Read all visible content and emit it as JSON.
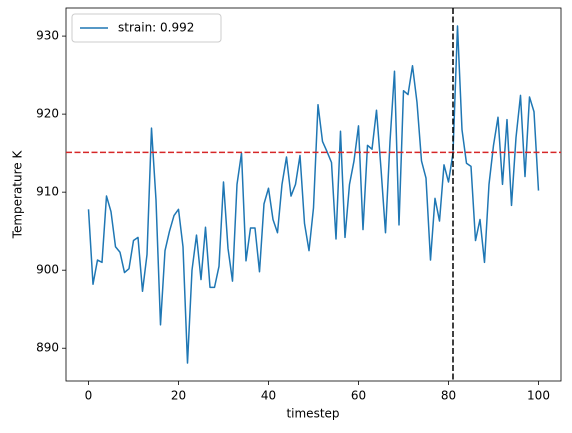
{
  "chart_data": {
    "type": "line",
    "xlabel": "timestep",
    "ylabel": "Temperature K",
    "x": [
      0,
      1,
      2,
      3,
      4,
      5,
      6,
      7,
      8,
      9,
      10,
      11,
      12,
      13,
      14,
      15,
      16,
      17,
      18,
      19,
      20,
      21,
      22,
      23,
      24,
      25,
      26,
      27,
      28,
      29,
      30,
      31,
      32,
      33,
      34,
      35,
      36,
      37,
      38,
      39,
      40,
      41,
      42,
      43,
      44,
      45,
      46,
      47,
      48,
      49,
      50,
      51,
      52,
      53,
      54,
      55,
      56,
      57,
      58,
      59,
      60,
      61,
      62,
      63,
      64,
      65,
      66,
      67,
      68,
      69,
      70,
      71,
      72,
      73,
      74,
      75,
      76,
      77,
      78,
      79,
      80,
      81,
      82,
      83,
      84,
      85,
      86,
      87,
      88,
      89,
      90,
      91,
      92,
      93,
      94,
      95,
      96,
      97,
      98,
      99,
      100
    ],
    "series": [
      {
        "name": "strain: 0.992",
        "color": "#1f77b4",
        "values": [
          907.8,
          898.2,
          901.3,
          901.0,
          909.5,
          907.5,
          903.0,
          902.3,
          899.7,
          900.2,
          903.8,
          904.2,
          897.3,
          902.0,
          918.2,
          909.0,
          893.0,
          902.5,
          905.0,
          907.0,
          907.8,
          903.0,
          888.1,
          900.0,
          904.5,
          898.8,
          905.5,
          897.8,
          897.8,
          900.5,
          911.3,
          902.8,
          898.6,
          911.0,
          915.0,
          901.2,
          905.4,
          905.4,
          899.8,
          908.5,
          910.5,
          906.5,
          904.8,
          911.0,
          914.5,
          909.5,
          911.0,
          914.7,
          906.0,
          902.5,
          908.0,
          921.2,
          916.5,
          915.2,
          913.8,
          904.0,
          917.8,
          904.2,
          911.0,
          914.0,
          918.5,
          905.2,
          916.0,
          915.5,
          920.5,
          913.0,
          904.8,
          916.5,
          925.5,
          905.8,
          923.0,
          922.5,
          926.2,
          921.5,
          914.0,
          911.8,
          901.3,
          909.2,
          906.3,
          913.5,
          911.3,
          915.0,
          931.3,
          918.0,
          913.7,
          913.3,
          903.8,
          906.5,
          901.0,
          911.0,
          916.0,
          919.6,
          911.0,
          919.3,
          908.3,
          917.0,
          922.4,
          912.0,
          922.2,
          920.3,
          910.2
        ]
      }
    ],
    "hlines": [
      {
        "y": 915.1,
        "color": "#d62728"
      }
    ],
    "vlines": [
      {
        "x": 81,
        "color": "#000000"
      }
    ],
    "xlim": [
      -5,
      105
    ],
    "ylim": [
      885.8,
      933.6
    ],
    "xticks": [
      0,
      20,
      40,
      60,
      80,
      100
    ],
    "yticks": [
      890,
      900,
      910,
      920,
      930
    ],
    "legend": "upper left"
  }
}
